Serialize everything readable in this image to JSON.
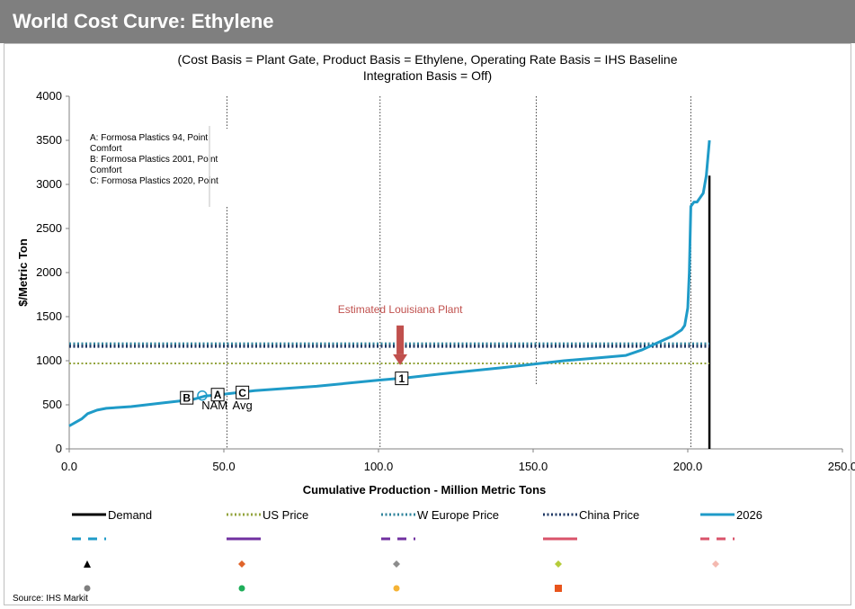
{
  "header": {
    "title": "World Cost Curve:  Ethylene"
  },
  "footer": {
    "source": "Source: IHS Markit"
  },
  "chart_data": {
    "type": "line",
    "title": "(Cost Basis = Plant Gate, Product Basis = Ethylene, Operating Rate Basis = IHS Baseline",
    "subtitle": "Integration Basis = Off)",
    "xlabel": "Cumulative Production - Million Metric Tons",
    "ylabel": "$/Metric Ton",
    "xlim": [
      0,
      250
    ],
    "ylim": [
      0,
      4000
    ],
    "x_ticks": [
      "0.0",
      "50.0",
      "100.0",
      "150.0",
      "200.0",
      "250.0"
    ],
    "y_ticks": [
      "0",
      "500",
      "1000",
      "1500",
      "2000",
      "2500",
      "3000",
      "3500",
      "4000"
    ],
    "vertical_gridlines_x": [
      51,
      100.5,
      151,
      201
    ],
    "series": [
      {
        "name": "2026",
        "color": "#1f9bc8",
        "x": [
          0,
          2,
          4,
          6,
          9,
          12,
          20,
          30,
          40,
          44,
          50,
          60,
          80,
          100,
          110,
          120,
          140,
          150,
          160,
          170,
          180,
          185,
          190,
          195,
          198,
          199,
          200,
          200.5,
          201,
          202,
          203,
          205,
          206,
          207
        ],
        "y": [
          260,
          300,
          340,
          400,
          440,
          460,
          480,
          520,
          560,
          600,
          620,
          660,
          710,
          780,
          810,
          850,
          920,
          960,
          1000,
          1030,
          1060,
          1120,
          1200,
          1280,
          1350,
          1400,
          1600,
          2000,
          2750,
          2800,
          2800,
          2900,
          3100,
          3500
        ]
      },
      {
        "name": "Demand",
        "color": "#000000",
        "x": [
          207,
          207
        ],
        "y": [
          0,
          3100
        ]
      },
      {
        "name": "US Price",
        "color": "#92a33b",
        "x": [
          0,
          207
        ],
        "y": [
          970,
          970
        ]
      },
      {
        "name": "W Europe Price",
        "color": "#31859c",
        "x": [
          0,
          207
        ],
        "y": [
          1190,
          1190
        ]
      },
      {
        "name": "China Price",
        "color": "#1f3864",
        "x": [
          0,
          207
        ],
        "y": [
          1165,
          1165
        ]
      }
    ],
    "markers": [
      {
        "label": "B",
        "x": 38,
        "y": 580
      },
      {
        "label": "A",
        "x": 48,
        "y": 615
      },
      {
        "label": "C",
        "x": 56,
        "y": 640
      },
      {
        "label": "1",
        "x": 107.5,
        "y": 800
      }
    ],
    "point_labels": [
      {
        "text": "NAM",
        "x": 47,
        "y": 450
      },
      {
        "text": "Avg",
        "x": 56,
        "y": 450
      }
    ],
    "annotation": {
      "text": "Estimated Louisiana Plant",
      "color": "#c0504d",
      "x": 107,
      "y": 1540
    },
    "arrow": {
      "color": "#c0504d",
      "x": 107,
      "y_from": 1400,
      "y_to": 950
    },
    "notes": [
      "A: Formosa Plastics 94, Point",
      "Comfort",
      "B: Formosa Plastics 2001, Point",
      "Comfort",
      "C: Formosa Plastics 2020, Point"
    ],
    "legend": {
      "placement": "bottom",
      "entries": [
        {
          "label": "Demand",
          "color": "#000000",
          "style": "solid"
        },
        {
          "label": "US Price",
          "color": "#92a33b",
          "style": "dotted"
        },
        {
          "label": "W Europe Price",
          "color": "#31859c",
          "style": "dotted"
        },
        {
          "label": "China Price",
          "color": "#1f3864",
          "style": "dotted"
        },
        {
          "label": "2026",
          "color": "#1f9bc8",
          "style": "solid"
        }
      ],
      "unlabeled_row1": [
        {
          "color": "#1f9bc8",
          "style": "dashed"
        },
        {
          "color": "#7030a0",
          "style": "solid"
        },
        {
          "color": "#7030a0",
          "style": "dashed"
        },
        {
          "color": "#d9536a",
          "style": "solid"
        },
        {
          "color": "#d9536a",
          "style": "dashed"
        }
      ],
      "unlabeled_row2": [
        {
          "color": "#000000",
          "shape": "triangle"
        },
        {
          "color": "#e0642a",
          "shape": "diamond"
        },
        {
          "color": "#8c8c8c",
          "shape": "diamond"
        },
        {
          "color": "#b5cc3a",
          "shape": "diamond"
        },
        {
          "color": "#f4b9b0",
          "shape": "diamond"
        }
      ],
      "unlabeled_row3": [
        {
          "color": "#7f7f7f",
          "shape": "circle"
        },
        {
          "color": "#1fae5a",
          "shape": "circle"
        },
        {
          "color": "#f5b335",
          "shape": "circle"
        },
        {
          "color": "#e8541c",
          "shape": "square"
        }
      ]
    }
  }
}
